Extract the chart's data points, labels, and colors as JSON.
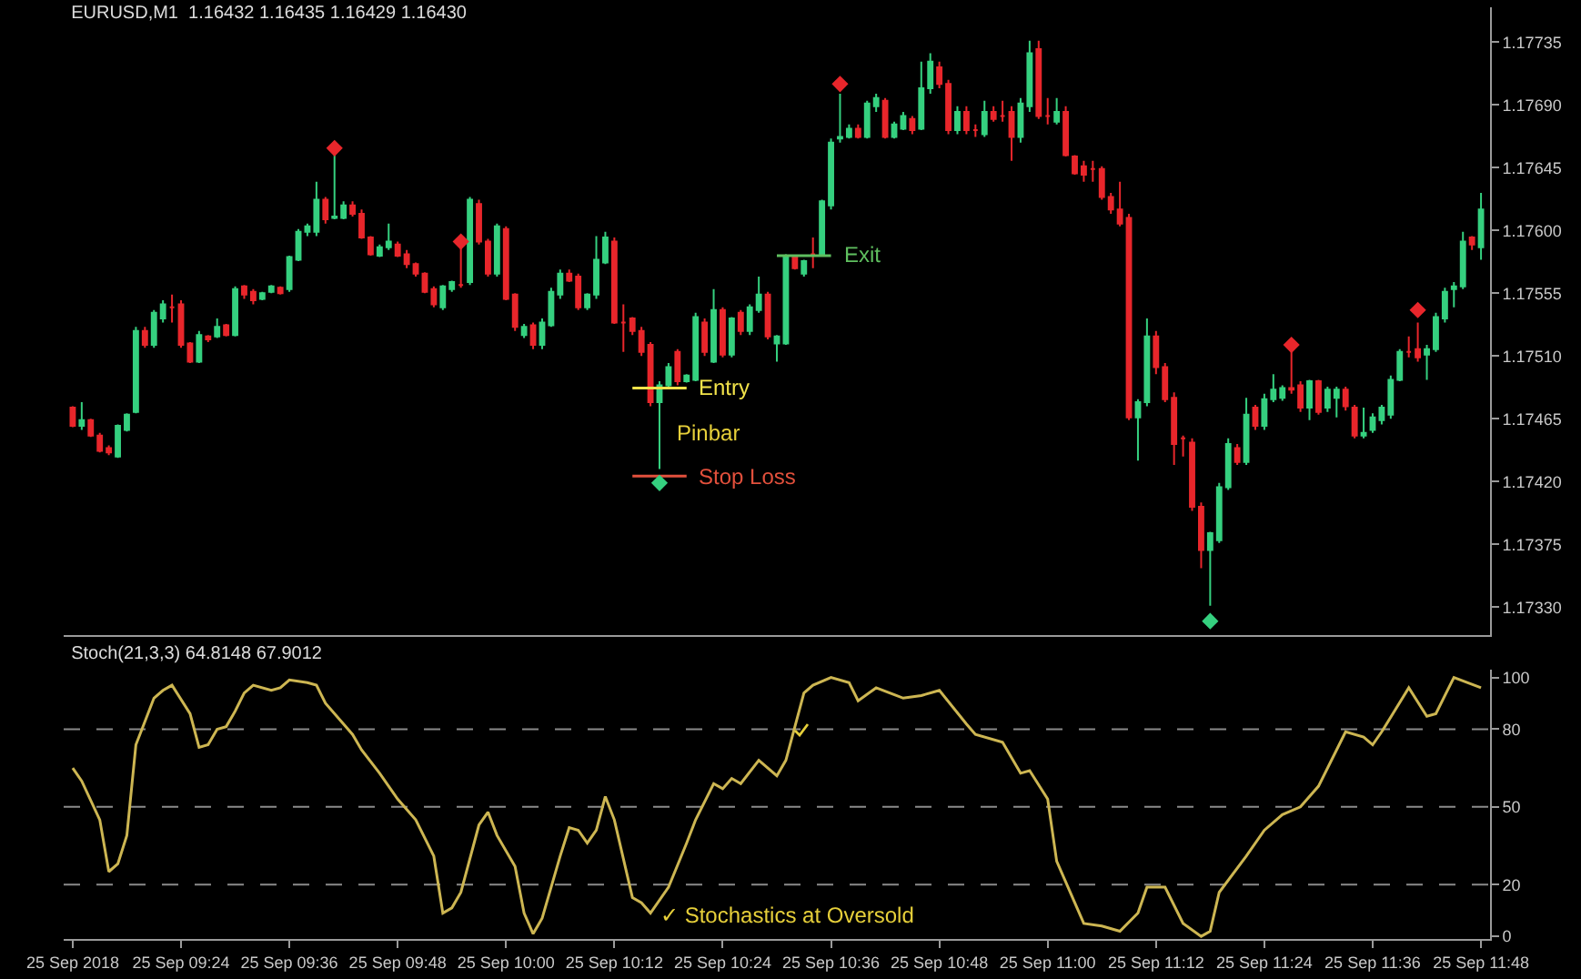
{
  "chart_data": [
    {
      "type": "candlestick",
      "title": "EURUSD,M1  1.16432 1.16435 1.16429 1.16430",
      "tick_labels": "y",
      "colors": [
        "#e8262b",
        "#35d07f",
        "#e8262b",
        "#e8262b",
        "#e8262b",
        "#35d07f",
        "#35d07f",
        "#35d07f",
        "#e8262b",
        "#35d07f",
        "#35d07f",
        "#e8262b",
        "#e8262b",
        "#e8262b",
        "#35d07f",
        "#e8262b",
        "#35d07f",
        "#e8262b",
        "#35d07f",
        "#e8262b",
        "#e8262b",
        "#35d07f",
        "#35d07f",
        "#e8262b",
        "#35d07f",
        "#35d07f",
        "#35d07f",
        "#35d07f",
        "#e8262b",
        "#35d07f",
        "#35d07f",
        "#e8262b",
        "#e8262b",
        "#e8262b",
        "#35d07f",
        "#35d07f",
        "#e8262b",
        "#e8262b",
        "#e8262b",
        "#e8262b",
        "#e8262b",
        "#35d07f",
        "#35d07f",
        "#e8262b",
        "#35d07f",
        "#e8262b",
        "#e8262b",
        "#35d07f",
        "#e8262b",
        "#e8262b",
        "#35d07f",
        "#e8262b",
        "#35d07f",
        "#35d07f",
        "#35d07f",
        "#e8262b",
        "#e8262b",
        "#35d07f",
        "#35d07f",
        "#35d07f",
        "#e8262b",
        "#e8262b",
        "#e8262b",
        "#e8262b",
        "#e8262b",
        "#35d07f",
        "#35d07f",
        "#e8262b",
        "#35d07f",
        "#35d07f",
        "#e8262b",
        "#35d07f",
        "#e8262b",
        "#35d07f",
        "#e8262b",
        "#35d07f",
        "#35d07f",
        "#e8262b",
        "#35d07f",
        "#35d07f",
        "#e8262b",
        "#35d07f",
        "#e8262b",
        "#35d07f",
        "#35d07f",
        "#35d07f",
        "#35d07f",
        "#e8262b",
        "#35d07f",
        "#35d07f",
        "#e8262b",
        "#35d07f",
        "#35d07f",
        "#e8262b",
        "#35d07f",
        "#35d07f",
        "#e8262b",
        "#e8262b",
        "#35d07f",
        "#e8262b",
        "#e8262b",
        "#35d07f",
        "#e8262b",
        "#e8262b",
        "#e8262b",
        "#35d07f",
        "#35d07f",
        "#e8262b",
        "#e8262b",
        "#35d07f",
        "#e8262b",
        "#e8262b",
        "#e8262b",
        "#e8262b",
        "#e8262b",
        "#e8262b",
        "#e8262b",
        "#e8262b",
        "#35d07f",
        "#35d07f",
        "#e8262b",
        "#e8262b",
        "#e8262b",
        "#e8262b",
        "#e8262b",
        "#e8262b",
        "#35d07f",
        "#35d07f",
        "#35d07f",
        "#e8262b",
        "#35d07f",
        "#e8262b",
        "#35d07f",
        "#35d07f",
        "#35d07f",
        "#e8262b",
        "#e8262b",
        "#35d07f",
        "#e8262b",
        "#35d07f",
        "#35d07f",
        "#e8262b",
        "#e8262b",
        "#35d07f",
        "#35d07f",
        "#35d07f",
        "#35d07f",
        "#35d07f",
        "#e8262b",
        "#e8262b",
        "#35d07f",
        "#35d07f",
        "#35d07f",
        "#35d07f",
        "#35d07f",
        "#e8262b",
        "#35d07f"
      ],
      "xlim": [
        "2018-09-25T09:11",
        "2018-09-25T11:49"
      ],
      "ylim": [
        1.1731,
        1.1776
      ],
      "yticks": [
        {
          "value": 1.1733,
          "label": "1.17330"
        },
        1.17375,
        {
          "value": 1.1742,
          "label": "1.17420"
        },
        1.17465,
        {
          "value": 1.1751,
          "label": "1.17510"
        },
        1.17555,
        {
          "value": 1.176,
          "label": "1.17600"
        },
        1.17645,
        {
          "value": 1.1769,
          "label": "1.17690"
        },
        1.17735
      ],
      "x": [
        "2018-09-25T09:12",
        "2018-09-25T09:13",
        "2018-09-25T09:14",
        "2018-09-25T09:15",
        "2018-09-25T09:16",
        "2018-09-25T09:17",
        "2018-09-25T09:18",
        "2018-09-25T09:19",
        "2018-09-25T09:20",
        "2018-09-25T09:21",
        "2018-09-25T09:22",
        "2018-09-25T09:23",
        "2018-09-25T09:24",
        "2018-09-25T09:25",
        "2018-09-25T09:26",
        "2018-09-25T09:27",
        "2018-09-25T09:28",
        "2018-09-25T09:29",
        "2018-09-25T09:30",
        "2018-09-25T09:31",
        "2018-09-25T09:32",
        "2018-09-25T09:33",
        "2018-09-25T09:34",
        "2018-09-25T09:35",
        "2018-09-25T09:36",
        "2018-09-25T09:37",
        "2018-09-25T09:38",
        "2018-09-25T09:39",
        "2018-09-25T09:40",
        "2018-09-25T09:41",
        "2018-09-25T09:42",
        "2018-09-25T09:43",
        "2018-09-25T09:44",
        "2018-09-25T09:45",
        "2018-09-25T09:46",
        "2018-09-25T09:47",
        "2018-09-25T09:48",
        "2018-09-25T09:49",
        "2018-09-25T09:50",
        "2018-09-25T09:51",
        "2018-09-25T09:52",
        "2018-09-25T09:53",
        "2018-09-25T09:54",
        "2018-09-25T09:55",
        "2018-09-25T09:56",
        "2018-09-25T09:57",
        "2018-09-25T09:58",
        "2018-09-25T09:59",
        "2018-09-25T10:00",
        "2018-09-25T10:01",
        "2018-09-25T10:02",
        "2018-09-25T10:03",
        "2018-09-25T10:04",
        "2018-09-25T10:05",
        "2018-09-25T10:06",
        "2018-09-25T10:07",
        "2018-09-25T10:08",
        "2018-09-25T10:09",
        "2018-09-25T10:10",
        "2018-09-25T10:11",
        "2018-09-25T10:12",
        "2018-09-25T10:13",
        "2018-09-25T10:14",
        "2018-09-25T10:15",
        "2018-09-25T10:16",
        "2018-09-25T10:17",
        "2018-09-25T10:18",
        "2018-09-25T10:19",
        "2018-09-25T10:20",
        "2018-09-25T10:21",
        "2018-09-25T10:22",
        "2018-09-25T10:23",
        "2018-09-25T10:24",
        "2018-09-25T10:25",
        "2018-09-25T10:26",
        "2018-09-25T10:27",
        "2018-09-25T10:28",
        "2018-09-25T10:29",
        "2018-09-25T10:30",
        "2018-09-25T10:31",
        "2018-09-25T10:32",
        "2018-09-25T10:33",
        "2018-09-25T10:34",
        "2018-09-25T10:35",
        "2018-09-25T10:36",
        "2018-09-25T10:37",
        "2018-09-25T10:38",
        "2018-09-25T10:39",
        "2018-09-25T10:40",
        "2018-09-25T10:41",
        "2018-09-25T10:42",
        "2018-09-25T10:43",
        "2018-09-25T10:44",
        "2018-09-25T10:45",
        "2018-09-25T10:46",
        "2018-09-25T10:47",
        "2018-09-25T10:48",
        "2018-09-25T10:49",
        "2018-09-25T10:50",
        "2018-09-25T10:51",
        "2018-09-25T10:52",
        "2018-09-25T10:53",
        "2018-09-25T10:54",
        "2018-09-25T10:55",
        "2018-09-25T10:56",
        "2018-09-25T10:57",
        "2018-09-25T10:58",
        "2018-09-25T10:59",
        "2018-09-25T11:00",
        "2018-09-25T11:01",
        "2018-09-25T11:02",
        "2018-09-25T11:03",
        "2018-09-25T11:04",
        "2018-09-25T11:05",
        "2018-09-25T11:06",
        "2018-09-25T11:07",
        "2018-09-25T11:08",
        "2018-09-25T11:09",
        "2018-09-25T11:10",
        "2018-09-25T11:11",
        "2018-09-25T11:12",
        "2018-09-25T11:13",
        "2018-09-25T11:14",
        "2018-09-25T11:15",
        "2018-09-25T11:16",
        "2018-09-25T11:17",
        "2018-09-25T11:18",
        "2018-09-25T11:19",
        "2018-09-25T11:20",
        "2018-09-25T11:21",
        "2018-09-25T11:22",
        "2018-09-25T11:23",
        "2018-09-25T11:24",
        "2018-09-25T11:25",
        "2018-09-25T11:26",
        "2018-09-25T11:27",
        "2018-09-25T11:28",
        "2018-09-25T11:29",
        "2018-09-25T11:30",
        "2018-09-25T11:31",
        "2018-09-25T11:32",
        "2018-09-25T11:33",
        "2018-09-25T11:34",
        "2018-09-25T11:35",
        "2018-09-25T11:36",
        "2018-09-25T11:37",
        "2018-09-25T11:38",
        "2018-09-25T11:39",
        "2018-09-25T11:40",
        "2018-09-25T11:41",
        "2018-09-25T11:42",
        "2018-09-25T11:43",
        "2018-09-25T11:44",
        "2018-09-25T11:45",
        "2018-09-25T11:46",
        "2018-09-25T11:47",
        "2018-09-25T11:48"
      ],
      "ohlc": [
        [
          1.17473,
          1.17474,
          1.17459,
          1.1746
        ],
        [
          1.1746,
          1.17477,
          1.17457,
          1.17464
        ],
        [
          1.17464,
          1.17465,
          1.17452,
          1.17453
        ],
        [
          1.17453,
          1.17455,
          1.17441,
          1.17442
        ],
        [
          1.17444,
          1.17446,
          1.17439,
          1.17441
        ],
        [
          1.17438,
          1.17461,
          1.17437,
          1.1746
        ],
        [
          1.17457,
          1.17469,
          1.17456,
          1.17468
        ],
        [
          1.1747,
          1.17531,
          1.17469,
          1.17528
        ],
        [
          1.17528,
          1.17531,
          1.17516,
          1.17518
        ],
        [
          1.17518,
          1.17543,
          1.17516,
          1.17541
        ],
        [
          1.17537,
          1.1755,
          1.17534,
          1.17547
        ],
        [
          1.17545,
          1.17554,
          1.17534,
          1.17545
        ],
        [
          1.17547,
          1.1755,
          1.17516,
          1.17518
        ],
        [
          1.17519,
          1.1752,
          1.17505,
          1.17506
        ],
        [
          1.17506,
          1.17528,
          1.17505,
          1.17525
        ],
        [
          1.17524,
          1.17525,
          1.1752,
          1.17522
        ],
        [
          1.17524,
          1.17537,
          1.17523,
          1.17531
        ],
        [
          1.17532,
          1.17533,
          1.17524,
          1.17525
        ],
        [
          1.17525,
          1.1756,
          1.17524,
          1.17558
        ],
        [
          1.1756,
          1.17561,
          1.17551,
          1.17554
        ],
        [
          1.17556,
          1.17558,
          1.17547,
          1.1755
        ],
        [
          1.17551,
          1.17556,
          1.1755,
          1.17555
        ],
        [
          1.17556,
          1.17561,
          1.17555,
          1.1756
        ],
        [
          1.17559,
          1.1756,
          1.17554,
          1.17555
        ],
        [
          1.17558,
          1.17582,
          1.17556,
          1.17581
        ],
        [
          1.17579,
          1.17601,
          1.17578,
          1.17599
        ],
        [
          1.17599,
          1.17605,
          1.17596,
          1.17603
        ],
        [
          1.17599,
          1.17635,
          1.17596,
          1.17622
        ],
        [
          1.17622,
          1.17624,
          1.17605,
          1.17608
        ],
        [
          1.17609,
          1.17656,
          1.17608,
          1.1761
        ],
        [
          1.17609,
          1.17621,
          1.17608,
          1.17618
        ],
        [
          1.17618,
          1.17621,
          1.1761,
          1.17612
        ],
        [
          1.17612,
          1.17615,
          1.17594,
          1.17595
        ],
        [
          1.17595,
          1.17596,
          1.17582,
          1.17583
        ],
        [
          1.17582,
          1.1759,
          1.17581,
          1.17588
        ],
        [
          1.17588,
          1.17605,
          1.17586,
          1.17592
        ],
        [
          1.1759,
          1.17592,
          1.17581,
          1.17582
        ],
        [
          1.17583,
          1.17586,
          1.17573,
          1.17576
        ],
        [
          1.17576,
          1.17577,
          1.17567,
          1.17569
        ],
        [
          1.17569,
          1.1757,
          1.17555,
          1.17556
        ],
        [
          1.17558,
          1.1756,
          1.17545,
          1.17547
        ],
        [
          1.17545,
          1.17561,
          1.17543,
          1.1756
        ],
        [
          1.17558,
          1.17564,
          1.17556,
          1.17563
        ],
        [
          1.17561,
          1.1759,
          1.17559,
          1.17561
        ],
        [
          1.17563,
          1.17624,
          1.17561,
          1.17622
        ],
        [
          1.17619,
          1.17622,
          1.1759,
          1.17592
        ],
        [
          1.17592,
          1.17594,
          1.17567,
          1.17569
        ],
        [
          1.17569,
          1.17605,
          1.17567,
          1.17603
        ],
        [
          1.17601,
          1.17603,
          1.1755,
          1.17551
        ],
        [
          1.17554,
          1.17555,
          1.17528,
          1.17531
        ],
        [
          1.17525,
          1.17533,
          1.17523,
          1.17531
        ],
        [
          1.17532,
          1.17534,
          1.17515,
          1.17518
        ],
        [
          1.17518,
          1.17537,
          1.17515,
          1.17534
        ],
        [
          1.17532,
          1.17559,
          1.17531,
          1.17556
        ],
        [
          1.17554,
          1.17572,
          1.17551,
          1.17569
        ],
        [
          1.17569,
          1.17572,
          1.17563,
          1.17564
        ],
        [
          1.17567,
          1.17569,
          1.17543,
          1.17545
        ],
        [
          1.17545,
          1.17555,
          1.17543,
          1.17554
        ],
        [
          1.17554,
          1.17596,
          1.17551,
          1.17579
        ],
        [
          1.17577,
          1.17599,
          1.17576,
          1.17595
        ],
        [
          1.17592,
          1.17595,
          1.17533,
          1.17534
        ],
        [
          1.17534,
          1.17547,
          1.17513,
          1.17534
        ],
        [
          1.17537,
          1.17538,
          1.17525,
          1.17528
        ],
        [
          1.17528,
          1.17531,
          1.1751,
          1.17513
        ],
        [
          1.17518,
          1.1752,
          1.17474,
          1.17477
        ],
        [
          1.17477,
          1.17492,
          1.17429,
          1.17489
        ],
        [
          1.17489,
          1.17505,
          1.17488,
          1.17502
        ],
        [
          1.17513,
          1.17515,
          1.17489,
          1.17492
        ],
        [
          1.17492,
          1.17497,
          1.17491,
          1.17496
        ],
        [
          1.17493,
          1.17541,
          1.17492,
          1.17538
        ],
        [
          1.17534,
          1.17537,
          1.1751,
          1.17513
        ],
        [
          1.17506,
          1.17558,
          1.17505,
          1.17543
        ],
        [
          1.17543,
          1.17545,
          1.17509,
          1.17511
        ],
        [
          1.17511,
          1.17538,
          1.17509,
          1.17537
        ],
        [
          1.17541,
          1.17543,
          1.17525,
          1.17528
        ],
        [
          1.17528,
          1.17547,
          1.17525,
          1.17545
        ],
        [
          1.17543,
          1.17567,
          1.17541,
          1.17554
        ],
        [
          1.17554,
          1.17556,
          1.17522,
          1.17524
        ],
        [
          1.17519,
          1.17525,
          1.17506,
          1.17524
        ],
        [
          1.17519,
          1.17583,
          1.17518,
          1.17582
        ],
        [
          1.17581,
          1.17582,
          1.17572,
          1.17573
        ],
        [
          1.17569,
          1.17579,
          1.17567,
          1.17578
        ],
        [
          1.17583,
          1.17595,
          1.17573,
          1.17583
        ],
        [
          1.17583,
          1.17622,
          1.17582,
          1.17621
        ],
        [
          1.17618,
          1.17666,
          1.17615,
          1.17663
        ],
        [
          1.17666,
          1.17698,
          1.17663,
          1.17667
        ],
        [
          1.17667,
          1.17676,
          1.17666,
          1.17673
        ],
        [
          1.17673,
          1.17676,
          1.17666,
          1.17667
        ],
        [
          1.17667,
          1.17693,
          1.17666,
          1.17691
        ],
        [
          1.17689,
          1.17698,
          1.17685,
          1.17695
        ],
        [
          1.17693,
          1.17695,
          1.17666,
          1.17667
        ],
        [
          1.17667,
          1.17678,
          1.17666,
          1.17676
        ],
        [
          1.17673,
          1.17685,
          1.17672,
          1.17682
        ],
        [
          1.1768,
          1.17682,
          1.17669,
          1.17672
        ],
        [
          1.17673,
          1.17721,
          1.17672,
          1.17702
        ],
        [
          1.17702,
          1.17727,
          1.17698,
          1.17721
        ],
        [
          1.17717,
          1.17721,
          1.17702,
          1.17705
        ],
        [
          1.17705,
          1.17708,
          1.17669,
          1.17672
        ],
        [
          1.17672,
          1.17689,
          1.17669,
          1.17685
        ],
        [
          1.17685,
          1.17689,
          1.17669,
          1.17672
        ],
        [
          1.17672,
          1.17676,
          1.17667,
          1.17672
        ],
        [
          1.17669,
          1.17693,
          1.17667,
          1.17685
        ],
        [
          1.17685,
          1.17689,
          1.17678,
          1.1768
        ],
        [
          1.17682,
          1.17693,
          1.17678,
          1.17682
        ],
        [
          1.17685,
          1.17689,
          1.1765,
          1.17667
        ],
        [
          1.17667,
          1.17695,
          1.17663,
          1.17691
        ],
        [
          1.17689,
          1.17736,
          1.17685,
          1.17727
        ],
        [
          1.1773,
          1.17736,
          1.1768,
          1.17682
        ],
        [
          1.17682,
          1.17695,
          1.17676,
          1.17682
        ],
        [
          1.17678,
          1.17695,
          1.17676,
          1.17685
        ],
        [
          1.17685,
          1.17689,
          1.17653,
          1.17654
        ],
        [
          1.17653,
          1.17654,
          1.1764,
          1.17641
        ],
        [
          1.17646,
          1.1765,
          1.17635,
          1.1764
        ],
        [
          1.17644,
          1.1765,
          1.17635,
          1.17644
        ],
        [
          1.17644,
          1.17646,
          1.17622,
          1.17624
        ],
        [
          1.17624,
          1.17627,
          1.17612,
          1.17615
        ],
        [
          1.17615,
          1.17635,
          1.17603,
          1.17605
        ],
        [
          1.17609,
          1.17612,
          1.17464,
          1.17466
        ],
        [
          1.17466,
          1.17479,
          1.17435,
          1.17477
        ],
        [
          1.17477,
          1.17537,
          1.17474,
          1.17524
        ],
        [
          1.17524,
          1.17528,
          1.17497,
          1.17502
        ],
        [
          1.17502,
          1.17505,
          1.17477,
          1.17479
        ],
        [
          1.1748,
          1.17484,
          1.17432,
          1.17447
        ],
        [
          1.17451,
          1.17453,
          1.17438,
          1.17451
        ],
        [
          1.17448,
          1.17451,
          1.17399,
          1.17402
        ],
        [
          1.17402,
          1.17405,
          1.17358,
          1.17371
        ],
        [
          1.17371,
          1.17384,
          1.17331,
          1.17383
        ],
        [
          1.17378,
          1.17419,
          1.17376,
          1.17416
        ],
        [
          1.17416,
          1.17451,
          1.17414,
          1.17447
        ],
        [
          1.17444,
          1.17447,
          1.17432,
          1.17434
        ],
        [
          1.17434,
          1.1748,
          1.17432,
          1.17468
        ],
        [
          1.17473,
          1.17475,
          1.17457,
          1.1746
        ],
        [
          1.1746,
          1.17483,
          1.17457,
          1.17479
        ],
        [
          1.17479,
          1.17497,
          1.17477,
          1.17486
        ],
        [
          1.1748,
          1.17489,
          1.17478,
          1.17487
        ],
        [
          1.17487,
          1.17513,
          1.17483,
          1.17486
        ],
        [
          1.17489,
          1.17492,
          1.1747,
          1.17473
        ],
        [
          1.17473,
          1.17493,
          1.17464,
          1.17492
        ],
        [
          1.17492,
          1.17493,
          1.17468,
          1.1747
        ],
        [
          1.17473,
          1.17488,
          1.1747,
          1.17486
        ],
        [
          1.1748,
          1.17488,
          1.17466,
          1.17486
        ],
        [
          1.17486,
          1.17488,
          1.17471,
          1.17474
        ],
        [
          1.17473,
          1.17475,
          1.17451,
          1.17453
        ],
        [
          1.17453,
          1.17473,
          1.17451,
          1.17455
        ],
        [
          1.17457,
          1.17469,
          1.17455,
          1.17466
        ],
        [
          1.17464,
          1.17475,
          1.17461,
          1.17473
        ],
        [
          1.17468,
          1.17496,
          1.17465,
          1.17493
        ],
        [
          1.17493,
          1.17515,
          1.17492,
          1.17513
        ],
        [
          1.17513,
          1.17524,
          1.17509,
          1.17513
        ],
        [
          1.17515,
          1.17534,
          1.17506,
          1.17509
        ],
        [
          1.17511,
          1.17518,
          1.17493,
          1.17515
        ],
        [
          1.17515,
          1.17541,
          1.17513,
          1.17538
        ],
        [
          1.17537,
          1.17559,
          1.17534,
          1.17556
        ],
        [
          1.17558,
          1.17563,
          1.17545,
          1.1756
        ],
        [
          1.1756,
          1.17599,
          1.17558,
          1.17592
        ],
        [
          1.17595,
          1.17596,
          1.17586,
          1.1759
        ],
        [
          1.17588,
          1.17627,
          1.17579,
          1.17615
        ]
      ],
      "series": [
        {
          "type": "line",
          "name": "Entry",
          "color": "#f2e34a",
          "x": [
            "2018-09-25T10:14",
            "2018-09-25T10:20"
          ],
          "values": [
            1.17487,
            1.17487
          ]
        },
        {
          "type": "line",
          "name": "Stop Loss",
          "color": "#e2503c",
          "x": [
            "2018-09-25T10:14",
            "2018-09-25T10:20"
          ],
          "values": [
            1.17424,
            1.17424
          ]
        },
        {
          "type": "line",
          "name": "Exit",
          "color": "#5fbf5f",
          "x": [
            "2018-09-25T10:30",
            "2018-09-25T10:36"
          ],
          "values": [
            1.17582,
            1.17582
          ]
        },
        {
          "type": "scatter",
          "marker": "diamond",
          "color": "#e8262b",
          "x": [
            "2018-09-25T09:41",
            "2018-09-25T09:55",
            "2018-09-25T10:37",
            "2018-09-25T11:27",
            "2018-09-25T11:41"
          ],
          "values": [
            1.17659,
            1.17592,
            1.17705,
            1.17518,
            1.17543
          ]
        },
        {
          "type": "scatter",
          "marker": "diamond",
          "color": "#35d07f",
          "x": [
            "2018-09-25T10:17",
            "2018-09-25T11:18"
          ],
          "values": [
            1.17419,
            1.1732
          ]
        }
      ],
      "annotations": [
        {
          "text": "Pinbar",
          "x": "2018-09-25T10:17",
          "y": 1.17455
        }
      ]
    },
    {
      "type": "line",
      "title": "Stoch(21,3,3) 64.8148 67.9012",
      "xlim": [
        "2018-09-25T09:11",
        "2018-09-25T11:49"
      ],
      "xticks": [
        {
          "value": "2018-09-25T09:12",
          "label": "25 Sep 2018"
        },
        {
          "value": "2018-09-25T09:24",
          "label": "25 Sep 09:24"
        },
        {
          "value": "2018-09-25T09:36",
          "label": "25 Sep 09:36"
        },
        {
          "value": "2018-09-25T09:48",
          "label": "25 Sep 09:48"
        },
        {
          "value": "2018-09-25T10:00",
          "label": "25 Sep 10:00"
        },
        {
          "value": "2018-09-25T10:12",
          "label": "25 Sep 10:12"
        },
        {
          "value": "2018-09-25T10:24",
          "label": "25 Sep 10:24"
        },
        {
          "value": "2018-09-25T10:36",
          "label": "25 Sep 10:36"
        },
        {
          "value": "2018-09-25T10:48",
          "label": "25 Sep 10:48"
        },
        {
          "value": "2018-09-25T11:00",
          "label": "25 Sep 11:00"
        },
        {
          "value": "2018-09-25T11:12",
          "label": "25 Sep 11:12"
        },
        {
          "value": "2018-09-25T11:24",
          "label": "25 Sep 11:24"
        },
        {
          "value": "2018-09-25T11:36",
          "label": "25 Sep 11:36"
        },
        {
          "value": "2018-09-25T11:48",
          "label": "25 Sep 11:48"
        }
      ],
      "ylim": [
        -1,
        103
      ],
      "yticks": [
        0,
        20,
        50,
        80,
        100
      ],
      "ref_lines": [
        {
          "axis": "y",
          "value": 20,
          "color": "#8a8a8a",
          "line_style": "dashed"
        },
        {
          "axis": "y",
          "value": 50,
          "color": "#8a8a8a",
          "line_style": "dashed"
        },
        {
          "axis": "y",
          "value": 80,
          "color": "#8a8a8a",
          "line_style": "dashed"
        }
      ],
      "series": [
        {
          "color": "#cdb652",
          "x": [
            "2018-09-25T09:12",
            "2018-09-25T09:13",
            "2018-09-25T09:15",
            "2018-09-25T09:16",
            "2018-09-25T09:17",
            "2018-09-25T09:18",
            "2018-09-25T09:19",
            "2018-09-25T09:20",
            "2018-09-25T09:21",
            "2018-09-25T09:22",
            "2018-09-25T09:23",
            "2018-09-25T09:25",
            "2018-09-25T09:26",
            "2018-09-25T09:27",
            "2018-09-25T09:28",
            "2018-09-25T09:29",
            "2018-09-25T09:30",
            "2018-09-25T09:31",
            "2018-09-25T09:32",
            "2018-09-25T09:34",
            "2018-09-25T09:35",
            "2018-09-25T09:36",
            "2018-09-25T09:38",
            "2018-09-25T09:39",
            "2018-09-25T09:40",
            "2018-09-25T09:42",
            "2018-09-25T09:43",
            "2018-09-25T09:44",
            "2018-09-25T09:46",
            "2018-09-25T09:47",
            "2018-09-25T09:48",
            "2018-09-25T09:50",
            "2018-09-25T09:52",
            "2018-09-25T09:53",
            "2018-09-25T09:54",
            "2018-09-25T09:55",
            "2018-09-25T09:57",
            "2018-09-25T09:58",
            "2018-09-25T09:59",
            "2018-09-25T10:01",
            "2018-09-25T10:02",
            "2018-09-25T10:03",
            "2018-09-25T10:04",
            "2018-09-25T10:06",
            "2018-09-25T10:07",
            "2018-09-25T10:08",
            "2018-09-25T10:09",
            "2018-09-25T10:10",
            "2018-09-25T10:11",
            "2018-09-25T10:12",
            "2018-09-25T10:14",
            "2018-09-25T10:15",
            "2018-09-25T10:16",
            "2018-09-25T10:18",
            "2018-09-25T10:20",
            "2018-09-25T10:21",
            "2018-09-25T10:23",
            "2018-09-25T10:24",
            "2018-09-25T10:25",
            "2018-09-25T10:26",
            "2018-09-25T10:28",
            "2018-09-25T10:30",
            "2018-09-25T10:31",
            "2018-09-25T10:33",
            "2018-09-25T10:34",
            "2018-09-25T10:36",
            "2018-09-25T10:38",
            "2018-09-25T10:39",
            "2018-09-25T10:41",
            "2018-09-25T10:44",
            "2018-09-25T10:46",
            "2018-09-25T10:48",
            "2018-09-25T10:51",
            "2018-09-25T10:52",
            "2018-09-25T10:55",
            "2018-09-25T10:57",
            "2018-09-25T10:58",
            "2018-09-25T11:00",
            "2018-09-25T11:01",
            "2018-09-25T11:03",
            "2018-09-25T11:04",
            "2018-09-25T11:06",
            "2018-09-25T11:08",
            "2018-09-25T11:10",
            "2018-09-25T11:11",
            "2018-09-25T11:13",
            "2018-09-25T11:15",
            "2018-09-25T11:17",
            "2018-09-25T11:18",
            "2018-09-25T11:19",
            "2018-09-25T11:22",
            "2018-09-25T11:24",
            "2018-09-25T11:26",
            "2018-09-25T11:28",
            "2018-09-25T11:30",
            "2018-09-25T11:32",
            "2018-09-25T11:33",
            "2018-09-25T11:35",
            "2018-09-25T11:36",
            "2018-09-25T11:37",
            "2018-09-25T11:40",
            "2018-09-25T11:42",
            "2018-09-25T11:43",
            "2018-09-25T11:45",
            "2018-09-25T11:48"
          ],
          "values": [
            65,
            60,
            45,
            25,
            28,
            39,
            74,
            83,
            92,
            95,
            97,
            86,
            73,
            74,
            80,
            81,
            87,
            94,
            97,
            95,
            96,
            99,
            98,
            97,
            90,
            82,
            78,
            72,
            63,
            58,
            53,
            45,
            31,
            9,
            11,
            17,
            43,
            48,
            39,
            27,
            9,
            1,
            7,
            31,
            42,
            41,
            36,
            41,
            54,
            45,
            15,
            13,
            9,
            19,
            36,
            45,
            59,
            57,
            61,
            59,
            68,
            62,
            68,
            94,
            97,
            100,
            98,
            91,
            96,
            92,
            93,
            95,
            82,
            78,
            75,
            63,
            64,
            53,
            29,
            13,
            5,
            4,
            2,
            9,
            19,
            19,
            5,
            0,
            2,
            17,
            31,
            41,
            47,
            50,
            58,
            72,
            79,
            77,
            74,
            79,
            96,
            85,
            86,
            100,
            96
          ]
        }
      ],
      "annotations": [
        {
          "text": "✓ Stochastics at Oversold",
          "x": "2018-09-25T10:15",
          "y": 8
        }
      ]
    }
  ]
}
